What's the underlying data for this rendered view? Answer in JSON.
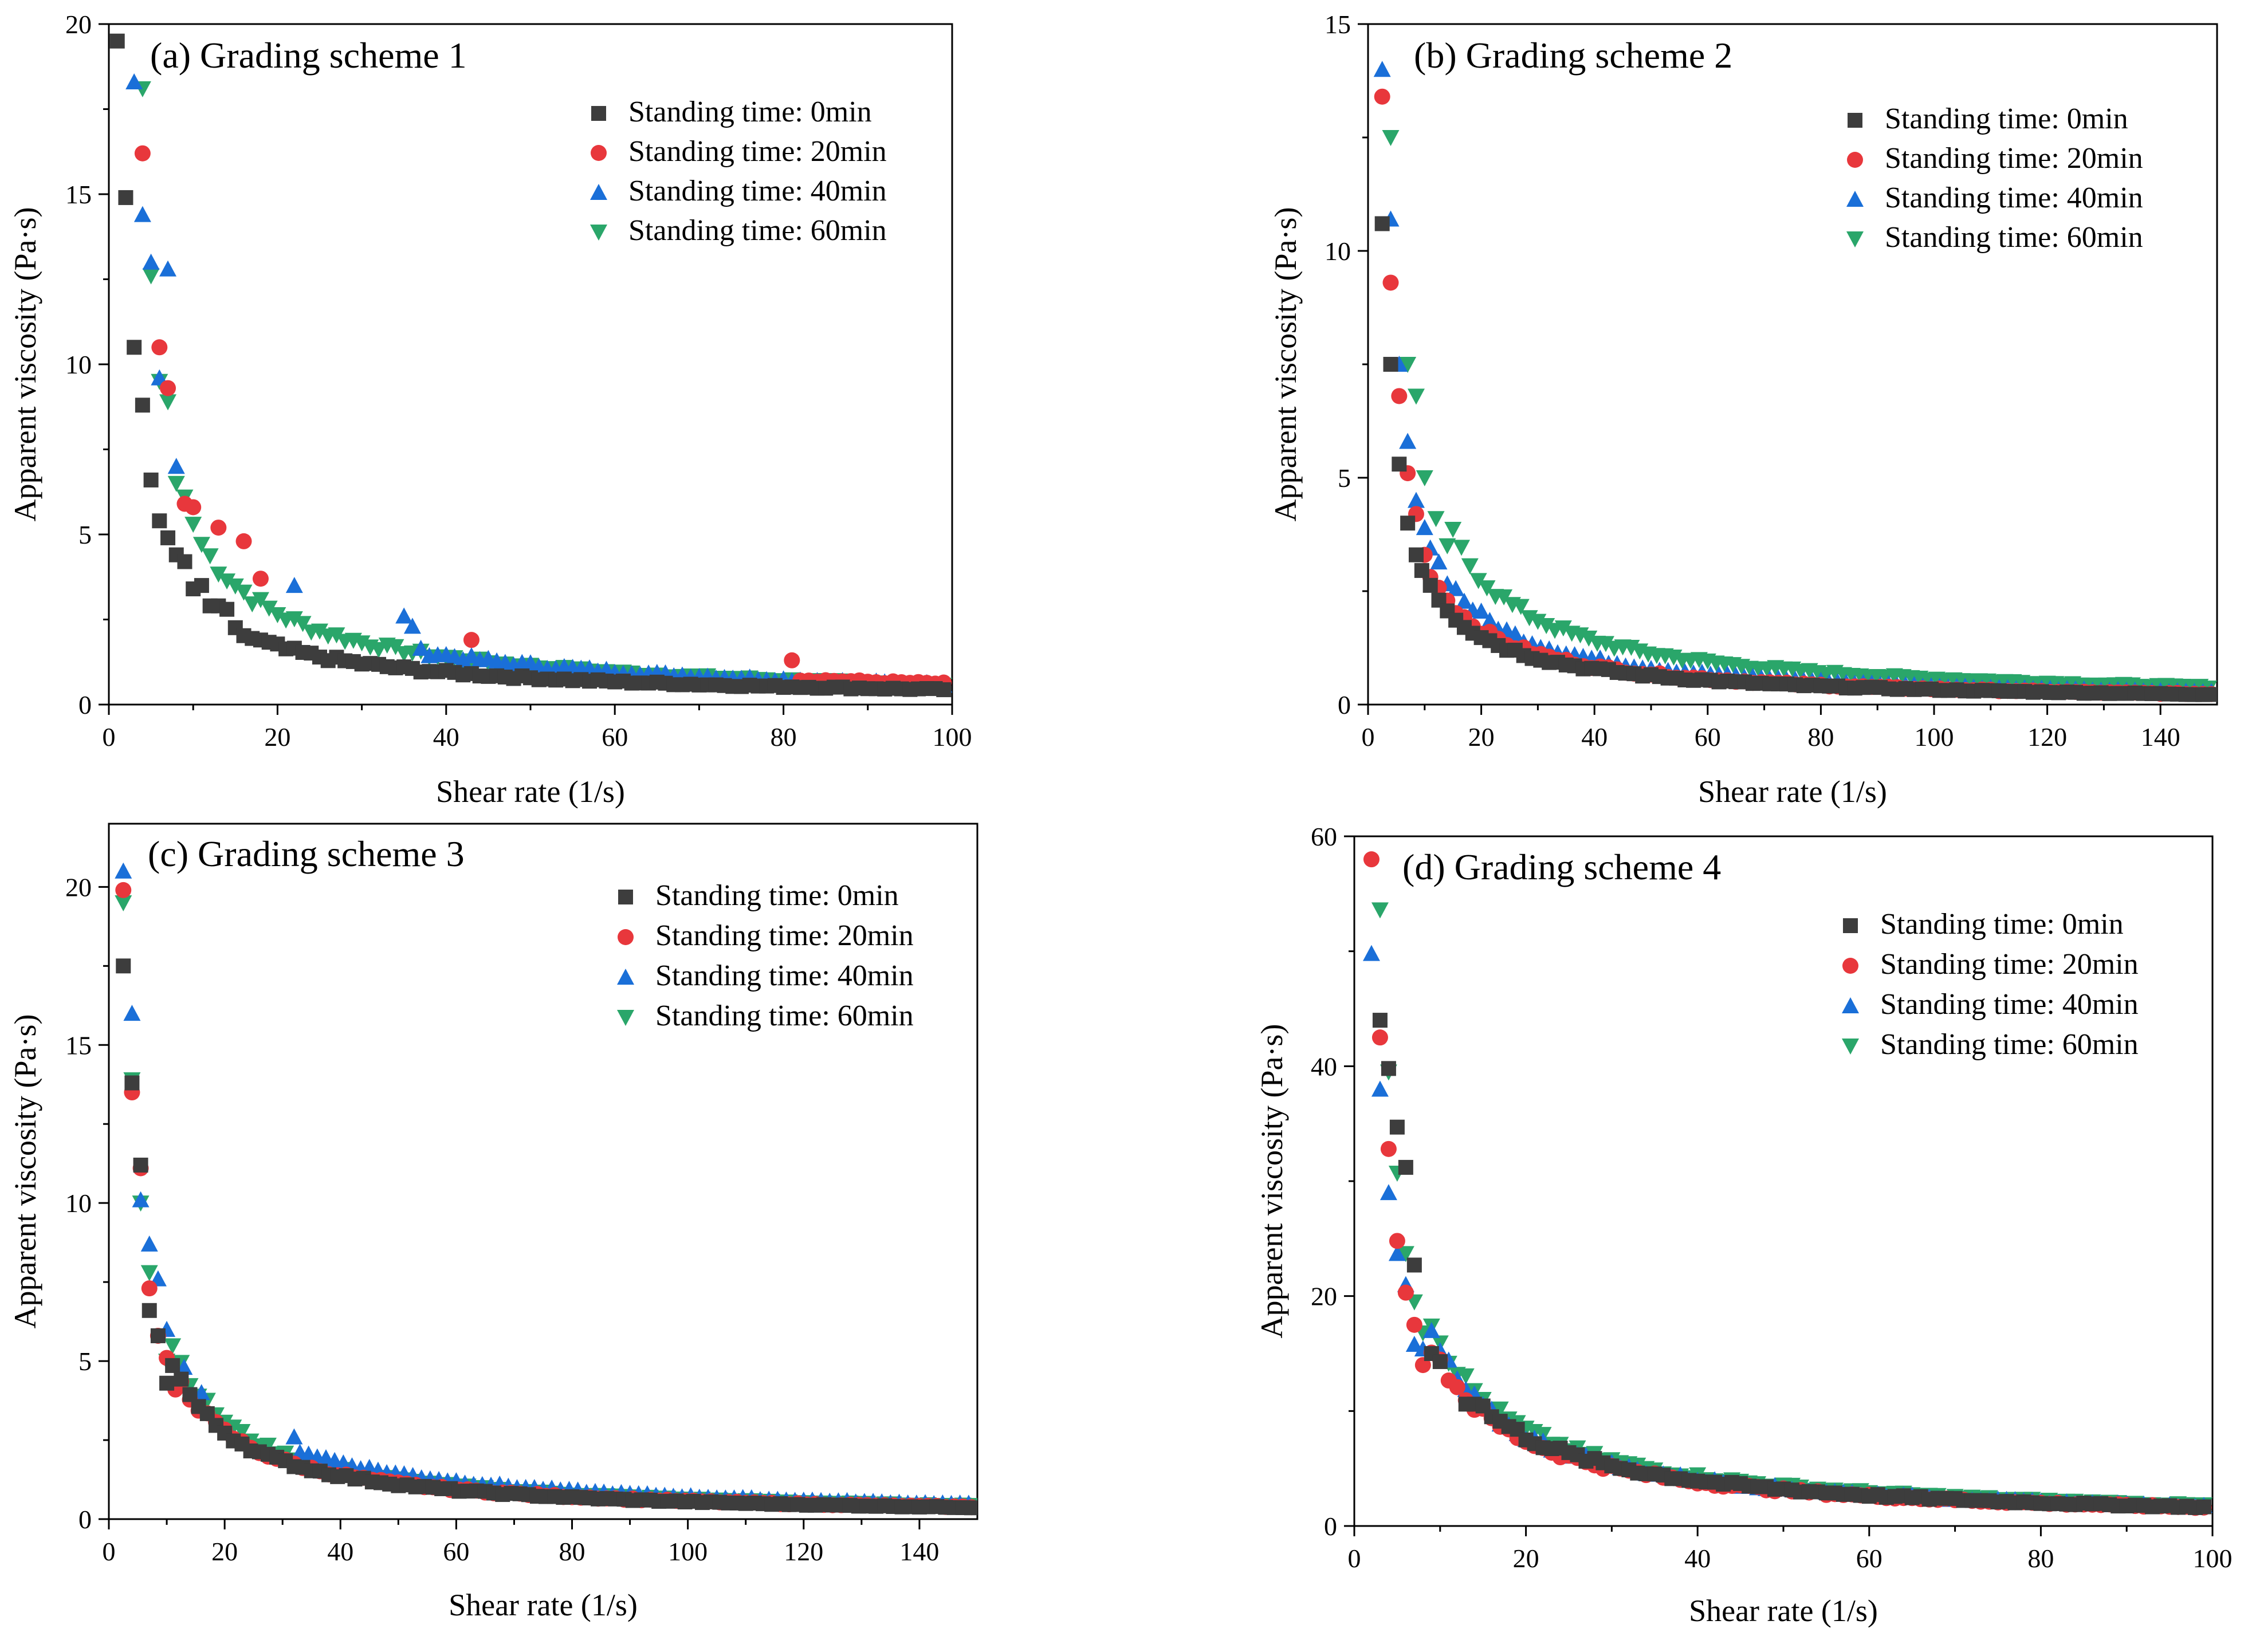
{
  "series_legend": [
    {
      "name": "Standing time: 0min",
      "color": "#3d3d3d",
      "marker": "square"
    },
    {
      "name": "Standing time: 20min",
      "color": "#e8373c",
      "marker": "circle"
    },
    {
      "name": "Standing time: 40min",
      "color": "#1a6fd8",
      "marker": "triangle-up"
    },
    {
      "name": "Standing time: 60min",
      "color": "#2aa66a",
      "marker": "triangle-down"
    }
  ],
  "chart_data": [
    {
      "type": "scatter",
      "title": "(a) Grading scheme 1",
      "xlabel": "Shear rate (1/s)",
      "ylabel": "Apparent viscosity (Pa·s)",
      "xlim": [
        0,
        100
      ],
      "ylim": [
        0,
        20
      ],
      "xticks": [
        0,
        20,
        40,
        60,
        80,
        100
      ],
      "yticks": [
        0,
        5,
        10,
        15,
        20
      ],
      "legend_position": "top-right",
      "series": [
        {
          "name": "Standing time: 0min",
          "a": 21,
          "b": 0.84,
          "c": 0,
          "base": [
            [
              1,
              19.5
            ],
            [
              2,
              14.9
            ],
            [
              3,
              10.5
            ],
            [
              4,
              8.8
            ],
            [
              5,
              6.6
            ],
            [
              6,
              5.4
            ],
            [
              7,
              4.9
            ],
            [
              8,
              4.4
            ],
            [
              9,
              4.2
            ],
            [
              10,
              3.4
            ],
            [
              11,
              3.5
            ],
            [
              12,
              2.9
            ],
            [
              13,
              2.9
            ],
            [
              14,
              2.8
            ]
          ],
          "x_max": 99,
          "jitter": 0.06
        },
        {
          "name": "Standing time: 20min",
          "a": 44,
          "b": 0.93,
          "c": 0,
          "base": [
            [
              4,
              16.2
            ],
            [
              6,
              10.5
            ],
            [
              7,
              9.3
            ],
            [
              9,
              5.9
            ],
            [
              10,
              5.8
            ],
            [
              13,
              5.2
            ],
            [
              16,
              4.8
            ],
            [
              18,
              3.7
            ],
            [
              43,
              1.9
            ],
            [
              81,
              1.3
            ]
          ],
          "x_max": 99,
          "jitter": 0.06
        },
        {
          "name": "Standing time: 40min",
          "a": 52,
          "b": 0.97,
          "c": 0,
          "base": [
            [
              3,
              18.3
            ],
            [
              4,
              14.4
            ],
            [
              5,
              13.0
            ],
            [
              7,
              12.8
            ],
            [
              6,
              9.6
            ],
            [
              8,
              7.0
            ],
            [
              22,
              3.5
            ],
            [
              35,
              2.6
            ],
            [
              36,
              2.3
            ]
          ],
          "x_max": 99,
          "jitter": 0.06
        },
        {
          "name": "Standing time: 60min",
          "a": 46,
          "b": 0.95,
          "c": 0,
          "base": [
            [
              4,
              18.1
            ],
            [
              5,
              12.6
            ],
            [
              7,
              8.9
            ],
            [
              6,
              9.5
            ],
            [
              8,
              6.5
            ],
            [
              9,
              6.1
            ],
            [
              10,
              5.3
            ]
          ],
          "x_max": 99,
          "jitter": 0.06
        }
      ]
    },
    {
      "type": "scatter",
      "title": "(b) Grading scheme 2",
      "xlabel": "Shear rate (1/s)",
      "ylabel": "Apparent viscosity (Pa·s)",
      "xlim": [
        0,
        150
      ],
      "ylim": [
        0,
        15
      ],
      "xticks": [
        0,
        20,
        40,
        60,
        80,
        100,
        120,
        140
      ],
      "yticks": [
        0,
        5,
        10,
        15
      ],
      "legend_position": "top-right",
      "series": [
        {
          "name": "Standing time: 0min",
          "a": 26,
          "b": 0.95,
          "c": 0,
          "base": [
            [
              2.5,
              10.6
            ],
            [
              4,
              7.5
            ],
            [
              5.5,
              5.3
            ],
            [
              7,
              4.0
            ],
            [
              8.5,
              3.3
            ]
          ],
          "x_max": 149,
          "jitter": 0.05
        },
        {
          "name": "Standing time: 20min",
          "a": 30,
          "b": 0.97,
          "c": 0,
          "base": [
            [
              2.5,
              13.4
            ],
            [
              4,
              9.3
            ],
            [
              5.5,
              6.8
            ],
            [
              7,
              5.1
            ],
            [
              8.5,
              4.2
            ],
            [
              10,
              3.3
            ]
          ],
          "x_max": 149,
          "jitter": 0.05
        },
        {
          "name": "Standing time: 40min",
          "a": 36,
          "b": 0.97,
          "c": 0,
          "base": [
            [
              2.5,
              14.0
            ],
            [
              4,
              10.7
            ],
            [
              5.5,
              7.5
            ],
            [
              7,
              5.8
            ],
            [
              8.5,
              4.5
            ],
            [
              10,
              3.9
            ]
          ],
          "x_max": 149,
          "jitter": 0.05
        },
        {
          "name": "Standing time: 60min",
          "a": 54,
          "b": 0.99,
          "c": 0,
          "base": [
            [
              4,
              12.5
            ],
            [
              7,
              7.5
            ],
            [
              8.5,
              6.8
            ],
            [
              10,
              5.0
            ],
            [
              12,
              4.1
            ],
            [
              14,
              3.5
            ]
          ],
          "x_max": 149,
          "jitter": 0.05
        }
      ]
    },
    {
      "type": "scatter",
      "title": "(c) Grading scheme 3",
      "xlabel": "Shear rate (1/s)",
      "ylabel": "Apparent viscosity (Pa·s)",
      "xlim": [
        0,
        150
      ],
      "ylim": [
        0,
        22
      ],
      "xticks": [
        0,
        20,
        40,
        60,
        80,
        100,
        120,
        140
      ],
      "yticks": [
        0,
        5,
        10,
        15,
        20
      ],
      "legend_position": "top-right",
      "series": [
        {
          "name": "Standing time: 0min",
          "a": 55,
          "b": 1.0,
          "c": 0.0,
          "base": [
            [
              2.5,
              17.5
            ],
            [
              4,
              13.8
            ],
            [
              5.5,
              11.2
            ],
            [
              7,
              6.6
            ],
            [
              8.5,
              5.8
            ],
            [
              10,
              4.3
            ]
          ],
          "x_max": 149,
          "jitter": 0.04
        },
        {
          "name": "Standing time: 20min",
          "a": 52,
          "b": 0.98,
          "c": 0.0,
          "base": [
            [
              2.5,
              19.9
            ],
            [
              4,
              13.5
            ],
            [
              5.5,
              11.1
            ],
            [
              7,
              7.3
            ],
            [
              8.5,
              5.8
            ],
            [
              10,
              5.1
            ],
            [
              11.5,
              4.1
            ]
          ],
          "x_max": 149,
          "jitter": 0.04
        },
        {
          "name": "Standing time: 40min",
          "a": 72,
          "b": 1.0,
          "c": 0.0,
          "base": [
            [
              2.5,
              20.5
            ],
            [
              4,
              16.0
            ],
            [
              5.5,
              10.1
            ],
            [
              7,
              8.7
            ],
            [
              8.5,
              7.6
            ],
            [
              10,
              6.0
            ],
            [
              13,
              4.8
            ],
            [
              16,
              4.0
            ],
            [
              32,
              2.6
            ]
          ],
          "x_max": 149,
          "jitter": 0.04
        },
        {
          "name": "Standing time: 60min",
          "a": 60,
          "b": 0.99,
          "c": 0.0,
          "base": [
            [
              2.5,
              19.5
            ],
            [
              4,
              13.9
            ],
            [
              5.5,
              10.0
            ],
            [
              7,
              7.8
            ],
            [
              10,
              5.0
            ]
          ],
          "x_max": 149,
          "jitter": 0.04
        }
      ]
    },
    {
      "type": "scatter",
      "title": "(d) Grading scheme 4",
      "xlabel": "Shear rate (1/s)",
      "ylabel": "Apparent viscosity (Pa·s)",
      "xlim": [
        0,
        100
      ],
      "ylim": [
        0,
        60
      ],
      "xticks": [
        0,
        20,
        40,
        60,
        80,
        100
      ],
      "yticks": [
        0,
        20,
        40,
        60
      ],
      "legend_position": "top-right",
      "series": [
        {
          "name": "Standing time: 0min",
          "a": 142,
          "b": 0.97,
          "c": 0,
          "base": [
            [
              3,
              44.0
            ],
            [
              4,
              39.8
            ],
            [
              5,
              34.7
            ],
            [
              6,
              31.2
            ],
            [
              7,
              22.7
            ],
            [
              9,
              15.0
            ],
            [
              10,
              14.3
            ],
            [
              13,
              10.6
            ]
          ],
          "x_max": 99,
          "jitter": 0.05
        },
        {
          "name": "Standing time: 20min",
          "a": 128,
          "b": 0.95,
          "c": 0,
          "base": [
            [
              2,
              58.0
            ],
            [
              3,
              42.5
            ],
            [
              4,
              32.8
            ],
            [
              5,
              24.8
            ],
            [
              6,
              20.3
            ],
            [
              7,
              17.5
            ],
            [
              8,
              14.0
            ]
          ],
          "x_max": 99,
          "jitter": 0.05
        },
        {
          "name": "Standing time: 40min",
          "a": 135,
          "b": 0.95,
          "c": 0,
          "base": [
            [
              2,
              49.8
            ],
            [
              3,
              38.0
            ],
            [
              4,
              29.0
            ],
            [
              5,
              23.7
            ],
            [
              6,
              21.0
            ],
            [
              7,
              15.8
            ],
            [
              8,
              15.4
            ]
          ],
          "x_max": 99,
          "jitter": 0.05
        },
        {
          "name": "Standing time: 60min",
          "a": 148,
          "b": 0.96,
          "c": 0,
          "base": [
            [
              3,
              53.6
            ],
            [
              4,
              39.5
            ],
            [
              5,
              30.7
            ],
            [
              6,
              23.7
            ],
            [
              7,
              19.5
            ],
            [
              8,
              16.8
            ]
          ],
          "x_max": 99,
          "jitter": 0.05
        }
      ]
    }
  ]
}
